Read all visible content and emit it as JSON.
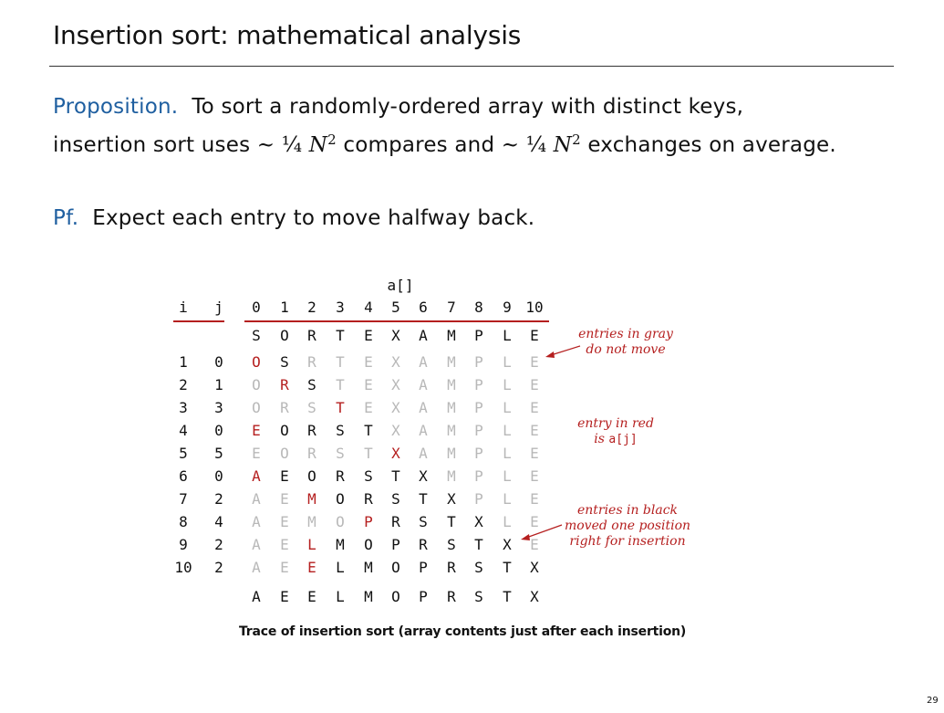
{
  "title": "Insertion sort:  mathematical analysis",
  "proposition": {
    "label": "Proposition.",
    "text_before": "To sort a randomly-ordered array with distinct keys,",
    "line2_start": "insertion sort uses ",
    "tilde": "~ ¼ ",
    "n": "N",
    "exp": "2",
    "middle": " compares and ",
    "end": " exchanges on average."
  },
  "proof": {
    "label": "Pf.",
    "text": "Expect each entry to move halfway back."
  },
  "trace": {
    "array_label": "a[]",
    "col_i": "i",
    "col_j": "j",
    "indices": [
      "0",
      "1",
      "2",
      "3",
      "4",
      "5",
      "6",
      "7",
      "8",
      "9",
      "10"
    ],
    "initial": [
      "S",
      "O",
      "R",
      "T",
      "E",
      "X",
      "A",
      "M",
      "P",
      "L",
      "E"
    ],
    "rows": [
      {
        "i": "1",
        "j": "0",
        "cells": [
          "O",
          "S",
          "R",
          "T",
          "E",
          "X",
          "A",
          "M",
          "P",
          "L",
          "E"
        ],
        "color": "rbggggggggg"
      },
      {
        "i": "2",
        "j": "1",
        "cells": [
          "O",
          "R",
          "S",
          "T",
          "E",
          "X",
          "A",
          "M",
          "P",
          "L",
          "E"
        ],
        "color": "grbgggggggg"
      },
      {
        "i": "3",
        "j": "3",
        "cells": [
          "O",
          "R",
          "S",
          "T",
          "E",
          "X",
          "A",
          "M",
          "P",
          "L",
          "E"
        ],
        "color": "gggrggggggg"
      },
      {
        "i": "4",
        "j": "0",
        "cells": [
          "E",
          "O",
          "R",
          "S",
          "T",
          "X",
          "A",
          "M",
          "P",
          "L",
          "E"
        ],
        "color": "rbbbbgggggg"
      },
      {
        "i": "5",
        "j": "5",
        "cells": [
          "E",
          "O",
          "R",
          "S",
          "T",
          "X",
          "A",
          "M",
          "P",
          "L",
          "E"
        ],
        "color": "gggggrggggg"
      },
      {
        "i": "6",
        "j": "0",
        "cells": [
          "A",
          "E",
          "O",
          "R",
          "S",
          "T",
          "X",
          "M",
          "P",
          "L",
          "E"
        ],
        "color": "rbbbbbbgggg"
      },
      {
        "i": "7",
        "j": "2",
        "cells": [
          "A",
          "E",
          "M",
          "O",
          "R",
          "S",
          "T",
          "X",
          "P",
          "L",
          "E"
        ],
        "color": "ggrbbbbbggg"
      },
      {
        "i": "8",
        "j": "4",
        "cells": [
          "A",
          "E",
          "M",
          "O",
          "P",
          "R",
          "S",
          "T",
          "X",
          "L",
          "E"
        ],
        "color": "ggggrbbbbgg"
      },
      {
        "i": "9",
        "j": "2",
        "cells": [
          "A",
          "E",
          "L",
          "M",
          "O",
          "P",
          "R",
          "S",
          "T",
          "X",
          "E"
        ],
        "color": "ggrbbbbbbbg"
      },
      {
        "i": "10",
        "j": "2",
        "cells": [
          "A",
          "E",
          "E",
          "L",
          "M",
          "O",
          "P",
          "R",
          "S",
          "T",
          "X"
        ],
        "color": "ggrbbbbbbbb"
      }
    ],
    "final": [
      "A",
      "E",
      "E",
      "L",
      "M",
      "O",
      "P",
      "R",
      "S",
      "T",
      "X"
    ]
  },
  "annotations": {
    "gray": [
      "entries in gray",
      "do not move"
    ],
    "red_line1": "entry in red",
    "red_line2_prefix": "is ",
    "red_line2_code": "a[j]",
    "black": [
      "entries in black",
      "moved one position",
      "right for insertion"
    ]
  },
  "caption": "Trace of insertion sort (array contents just after each insertion)",
  "page_number": "29",
  "colors": {
    "accent_blue": "#1f5fa0",
    "trace_red": "#b51f1f",
    "trace_gray": "#b8b8b8",
    "text": "#111111"
  }
}
